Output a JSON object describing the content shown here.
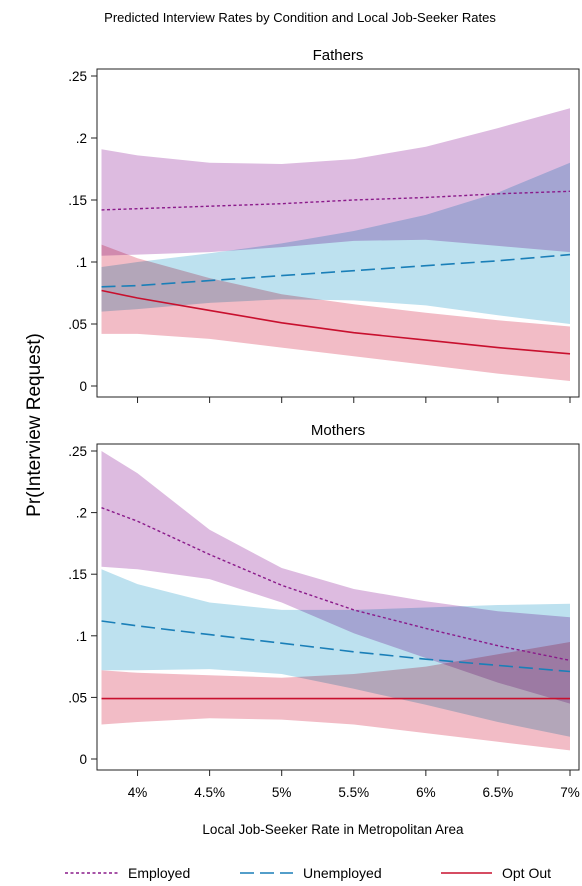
{
  "chart_data": {
    "type": "line",
    "title": "Predicted Interview Rates by Condition and Local Job-Seeker Rates",
    "ylabel": "Pr(Interview Request)",
    "xlabel": "Local Job-Seeker Rate in Metropolitan Area",
    "x_ticks": [
      "4%",
      "4.5%",
      "5%",
      "5.5%",
      "6%",
      "6.5%",
      "7%"
    ],
    "y_ticks": [
      "0",
      ".05",
      ".1",
      ".15",
      ".2",
      ".25"
    ],
    "xlim": [
      3.75,
      7.0
    ],
    "ylim": [
      0,
      0.25
    ],
    "legend_position": "bottom",
    "series_styles": [
      {
        "name": "Employed",
        "color": "#8a1a8a",
        "band": "#ddbbe0",
        "dash": "dotted"
      },
      {
        "name": "Unemployed",
        "color": "#1a7fb8",
        "band": "#bde1ef",
        "dash": "dashed"
      },
      {
        "name": "Opt Out",
        "color": "#c8102e",
        "band": "#f2bcc6",
        "dash": "solid"
      }
    ],
    "panels": [
      {
        "title": "Fathers",
        "x": [
          3.75,
          4.0,
          4.5,
          5.0,
          5.5,
          6.0,
          6.5,
          7.0
        ],
        "series": [
          {
            "name": "Employed",
            "values": [
              0.142,
              0.143,
              0.145,
              0.147,
              0.15,
              0.152,
              0.155,
              0.157
            ],
            "upper": [
              0.191,
              0.186,
              0.18,
              0.179,
              0.183,
              0.193,
              0.208,
              0.224
            ],
            "lower": [
              0.105,
              0.106,
              0.108,
              0.112,
              0.117,
              0.118,
              0.113,
              0.108
            ]
          },
          {
            "name": "Unemployed",
            "values": [
              0.08,
              0.081,
              0.085,
              0.089,
              0.093,
              0.097,
              0.101,
              0.106
            ],
            "upper": [
              0.096,
              0.1,
              0.107,
              0.115,
              0.125,
              0.138,
              0.156,
              0.18
            ],
            "lower": [
              0.06,
              0.062,
              0.067,
              0.07,
              0.069,
              0.065,
              0.057,
              0.05
            ]
          },
          {
            "name": "Opt Out",
            "values": [
              0.077,
              0.071,
              0.061,
              0.051,
              0.043,
              0.037,
              0.031,
              0.026
            ],
            "upper": [
              0.114,
              0.103,
              0.087,
              0.074,
              0.066,
              0.059,
              0.053,
              0.048
            ],
            "lower": [
              0.042,
              0.042,
              0.038,
              0.031,
              0.024,
              0.017,
              0.01,
              0.004
            ]
          }
        ]
      },
      {
        "title": "Mothers",
        "x": [
          3.75,
          4.0,
          4.5,
          5.0,
          5.5,
          6.0,
          6.5,
          7.0
        ],
        "series": [
          {
            "name": "Employed",
            "values": [
              0.204,
              0.193,
              0.166,
              0.141,
              0.121,
              0.106,
              0.092,
              0.08
            ],
            "upper": [
              0.25,
              0.232,
              0.186,
              0.155,
              0.138,
              0.128,
              0.12,
              0.115
            ],
            "lower": [
              0.156,
              0.154,
              0.146,
              0.127,
              0.102,
              0.082,
              0.062,
              0.045
            ]
          },
          {
            "name": "Unemployed",
            "values": [
              0.112,
              0.108,
              0.101,
              0.094,
              0.087,
              0.081,
              0.076,
              0.071
            ],
            "upper": [
              0.154,
              0.142,
              0.127,
              0.121,
              0.121,
              0.123,
              0.125,
              0.126
            ],
            "lower": [
              0.072,
              0.072,
              0.073,
              0.069,
              0.057,
              0.044,
              0.03,
              0.018
            ]
          },
          {
            "name": "Opt Out",
            "values": [
              0.049,
              0.049,
              0.049,
              0.049,
              0.049,
              0.049,
              0.049,
              0.049
            ],
            "upper": [
              0.072,
              0.07,
              0.068,
              0.066,
              0.069,
              0.075,
              0.085,
              0.095
            ],
            "lower": [
              0.028,
              0.03,
              0.033,
              0.032,
              0.028,
              0.021,
              0.014,
              0.007
            ]
          }
        ]
      }
    ]
  }
}
